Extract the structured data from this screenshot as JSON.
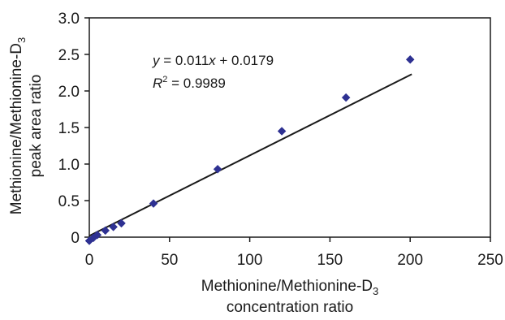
{
  "chart_data": {
    "type": "scatter",
    "x_label_main": "Methionine/Methionine-D",
    "x_label_sub": "3",
    "x_label_line2": "concentration ratio",
    "y_label_main": "Methionine/Methionine-D",
    "y_label_sub": "3",
    "y_label_line2": "peak area ratio",
    "x_ticks": [
      "0",
      "50",
      "100",
      "150",
      "200",
      "250"
    ],
    "y_ticks": [
      "0",
      "0.5",
      "1.0",
      "1.5",
      "2.0",
      "2.5",
      "3.0"
    ],
    "xlim": [
      0,
      250
    ],
    "ylim": [
      0,
      3.0
    ],
    "grid": false,
    "marker_color": "#2e3192",
    "line_color": "#1a1a1a",
    "points": [
      {
        "x": 0,
        "y": -0.05
      },
      {
        "x": 2.5,
        "y": -0.01
      },
      {
        "x": 5,
        "y": 0.03
      },
      {
        "x": 10,
        "y": 0.09
      },
      {
        "x": 15,
        "y": 0.14
      },
      {
        "x": 20,
        "y": 0.19
      },
      {
        "x": 40,
        "y": 0.46
      },
      {
        "x": 80,
        "y": 0.93
      },
      {
        "x": 120,
        "y": 1.45
      },
      {
        "x": 160,
        "y": 1.91
      },
      {
        "x": 200,
        "y": 2.43
      }
    ],
    "trendline": {
      "slope": 0.011,
      "intercept": 0.0179,
      "x_range": [
        0,
        201
      ]
    },
    "equation": {
      "y_var": "y",
      "eq_text": " = 0.011",
      "x_var": "x",
      "eq_tail": " + 0.0179",
      "r_var": "R",
      "r_sup": "2",
      "r_text": " = 0.9989"
    }
  }
}
